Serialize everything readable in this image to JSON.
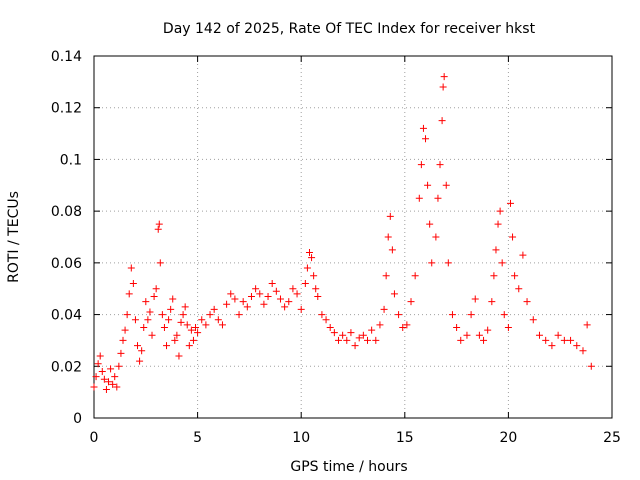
{
  "chart_data": {
    "type": "scatter",
    "title": "Day 142 of 2025, Rate Of TEC Index for receiver hkst",
    "xlabel": "GPS time / hours",
    "ylabel": "ROTI / TECUs",
    "xlim": [
      0,
      25
    ],
    "ylim": [
      0,
      0.14
    ],
    "xticks": [
      0,
      5,
      10,
      15,
      20,
      25
    ],
    "xtick_labels": [
      "0",
      "5",
      "10",
      "15",
      "20",
      "25"
    ],
    "yticks": [
      0,
      0.02,
      0.04,
      0.06,
      0.08,
      0.1,
      0.12,
      0.14
    ],
    "ytick_labels": [
      "0",
      "0.02",
      "0.04",
      "0.06",
      "0.08",
      "0.1",
      "0.12",
      "0.14"
    ],
    "grid": true,
    "marker": "+",
    "color": "#ff0000",
    "series": [
      {
        "name": "ROTI",
        "points": [
          [
            0.0,
            0.012
          ],
          [
            0.1,
            0.016
          ],
          [
            0.2,
            0.021
          ],
          [
            0.3,
            0.024
          ],
          [
            0.4,
            0.018
          ],
          [
            0.5,
            0.015
          ],
          [
            0.6,
            0.011
          ],
          [
            0.7,
            0.014
          ],
          [
            0.8,
            0.019
          ],
          [
            0.9,
            0.013
          ],
          [
            1.0,
            0.016
          ],
          [
            1.1,
            0.012
          ],
          [
            1.2,
            0.02
          ],
          [
            1.3,
            0.025
          ],
          [
            1.4,
            0.03
          ],
          [
            1.5,
            0.034
          ],
          [
            1.6,
            0.04
          ],
          [
            1.7,
            0.048
          ],
          [
            1.8,
            0.058
          ],
          [
            1.9,
            0.052
          ],
          [
            2.0,
            0.038
          ],
          [
            2.1,
            0.028
          ],
          [
            2.2,
            0.022
          ],
          [
            2.3,
            0.026
          ],
          [
            2.4,
            0.035
          ],
          [
            2.5,
            0.045
          ],
          [
            2.6,
            0.038
          ],
          [
            2.7,
            0.041
          ],
          [
            2.8,
            0.032
          ],
          [
            2.9,
            0.047
          ],
          [
            3.0,
            0.05
          ],
          [
            3.1,
            0.073
          ],
          [
            3.15,
            0.075
          ],
          [
            3.2,
            0.06
          ],
          [
            3.3,
            0.04
          ],
          [
            3.4,
            0.035
          ],
          [
            3.5,
            0.028
          ],
          [
            3.6,
            0.038
          ],
          [
            3.7,
            0.042
          ],
          [
            3.8,
            0.046
          ],
          [
            3.9,
            0.03
          ],
          [
            4.0,
            0.032
          ],
          [
            4.1,
            0.024
          ],
          [
            4.2,
            0.037
          ],
          [
            4.3,
            0.04
          ],
          [
            4.4,
            0.043
          ],
          [
            4.5,
            0.036
          ],
          [
            4.6,
            0.028
          ],
          [
            4.7,
            0.034
          ],
          [
            4.8,
            0.03
          ],
          [
            4.9,
            0.035
          ],
          [
            5.0,
            0.033
          ],
          [
            5.2,
            0.038
          ],
          [
            5.4,
            0.036
          ],
          [
            5.6,
            0.04
          ],
          [
            5.8,
            0.042
          ],
          [
            6.0,
            0.038
          ],
          [
            6.2,
            0.036
          ],
          [
            6.4,
            0.044
          ],
          [
            6.6,
            0.048
          ],
          [
            6.8,
            0.046
          ],
          [
            7.0,
            0.04
          ],
          [
            7.2,
            0.045
          ],
          [
            7.4,
            0.043
          ],
          [
            7.6,
            0.047
          ],
          [
            7.8,
            0.05
          ],
          [
            8.0,
            0.048
          ],
          [
            8.2,
            0.044
          ],
          [
            8.4,
            0.047
          ],
          [
            8.6,
            0.052
          ],
          [
            8.8,
            0.049
          ],
          [
            9.0,
            0.046
          ],
          [
            9.2,
            0.043
          ],
          [
            9.4,
            0.045
          ],
          [
            9.6,
            0.05
          ],
          [
            9.8,
            0.048
          ],
          [
            10.0,
            0.042
          ],
          [
            10.2,
            0.052
          ],
          [
            10.3,
            0.058
          ],
          [
            10.4,
            0.064
          ],
          [
            10.5,
            0.062
          ],
          [
            10.6,
            0.055
          ],
          [
            10.7,
            0.05
          ],
          [
            10.8,
            0.047
          ],
          [
            11.0,
            0.04
          ],
          [
            11.2,
            0.038
          ],
          [
            11.4,
            0.035
          ],
          [
            11.6,
            0.033
          ],
          [
            11.8,
            0.03
          ],
          [
            12.0,
            0.032
          ],
          [
            12.2,
            0.03
          ],
          [
            12.4,
            0.033
          ],
          [
            12.6,
            0.028
          ],
          [
            12.8,
            0.031
          ],
          [
            13.0,
            0.032
          ],
          [
            13.2,
            0.03
          ],
          [
            13.4,
            0.034
          ],
          [
            13.6,
            0.03
          ],
          [
            13.8,
            0.036
          ],
          [
            14.0,
            0.042
          ],
          [
            14.1,
            0.055
          ],
          [
            14.2,
            0.07
          ],
          [
            14.3,
            0.078
          ],
          [
            14.4,
            0.065
          ],
          [
            14.5,
            0.048
          ],
          [
            14.7,
            0.04
          ],
          [
            14.9,
            0.035
          ],
          [
            15.1,
            0.036
          ],
          [
            15.3,
            0.045
          ],
          [
            15.5,
            0.055
          ],
          [
            15.7,
            0.085
          ],
          [
            15.8,
            0.098
          ],
          [
            15.9,
            0.112
          ],
          [
            16.0,
            0.108
          ],
          [
            16.1,
            0.09
          ],
          [
            16.2,
            0.075
          ],
          [
            16.3,
            0.06
          ],
          [
            16.5,
            0.07
          ],
          [
            16.6,
            0.085
          ],
          [
            16.7,
            0.098
          ],
          [
            16.8,
            0.115
          ],
          [
            16.85,
            0.128
          ],
          [
            16.9,
            0.132
          ],
          [
            17.0,
            0.09
          ],
          [
            17.1,
            0.06
          ],
          [
            17.3,
            0.04
          ],
          [
            17.5,
            0.035
          ],
          [
            17.7,
            0.03
          ],
          [
            18.0,
            0.032
          ],
          [
            18.2,
            0.04
          ],
          [
            18.4,
            0.046
          ],
          [
            18.6,
            0.032
          ],
          [
            18.8,
            0.03
          ],
          [
            19.0,
            0.034
          ],
          [
            19.2,
            0.045
          ],
          [
            19.3,
            0.055
          ],
          [
            19.4,
            0.065
          ],
          [
            19.5,
            0.075
          ],
          [
            19.6,
            0.08
          ],
          [
            19.7,
            0.06
          ],
          [
            19.8,
            0.04
          ],
          [
            20.0,
            0.035
          ],
          [
            20.1,
            0.083
          ],
          [
            20.2,
            0.07
          ],
          [
            20.3,
            0.055
          ],
          [
            20.5,
            0.05
          ],
          [
            20.7,
            0.063
          ],
          [
            20.9,
            0.045
          ],
          [
            21.2,
            0.038
          ],
          [
            21.5,
            0.032
          ],
          [
            21.8,
            0.03
          ],
          [
            22.1,
            0.028
          ],
          [
            22.4,
            0.032
          ],
          [
            22.7,
            0.03
          ],
          [
            23.0,
            0.03
          ],
          [
            23.3,
            0.028
          ],
          [
            23.6,
            0.026
          ],
          [
            23.8,
            0.036
          ],
          [
            24.0,
            0.02
          ]
        ]
      }
    ]
  }
}
